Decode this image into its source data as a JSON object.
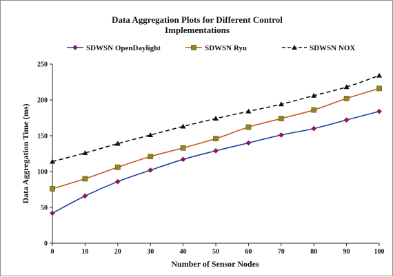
{
  "chart_data": {
    "type": "line",
    "title_line1": "Data Aggregation Plots for Different Control",
    "title_line2": "Implementations",
    "xlabel": "Number of Sensor Nodes",
    "ylabel": "Data Aggregation Time (ms)",
    "x": [
      0,
      10,
      20,
      30,
      40,
      50,
      60,
      70,
      80,
      90,
      100
    ],
    "xlim": [
      0,
      100
    ],
    "ylim": [
      0,
      250
    ],
    "xticks": [
      "0",
      "10",
      "20",
      "30",
      "40",
      "50",
      "60",
      "70",
      "80",
      "90",
      "100"
    ],
    "yticks": [
      "0",
      "50",
      "100",
      "150",
      "200",
      "250"
    ],
    "grid": false,
    "legend_position": "top",
    "series": [
      {
        "name": "SDWSN OpenDaylight",
        "color": "#1f3f9f",
        "marker": "diamond",
        "marker_color": "#8b1a4a",
        "line_style": "solid",
        "values": [
          42,
          66,
          86,
          102,
          117,
          129,
          140,
          151,
          160,
          172,
          184
        ]
      },
      {
        "name": "SDWSN Ryu",
        "color": "#c8551a",
        "marker": "square",
        "marker_color": "#8a8a1e",
        "line_style": "solid",
        "values": [
          76,
          90,
          106,
          121,
          133,
          146,
          162,
          174,
          186,
          202,
          216
        ]
      },
      {
        "name": "SDWSN NOX",
        "color": "#111111",
        "marker": "triangle",
        "marker_color": "#111111",
        "line_style": "dashed",
        "values": [
          114,
          126,
          139,
          151,
          163,
          174,
          184,
          194,
          206,
          218,
          234
        ]
      }
    ]
  }
}
